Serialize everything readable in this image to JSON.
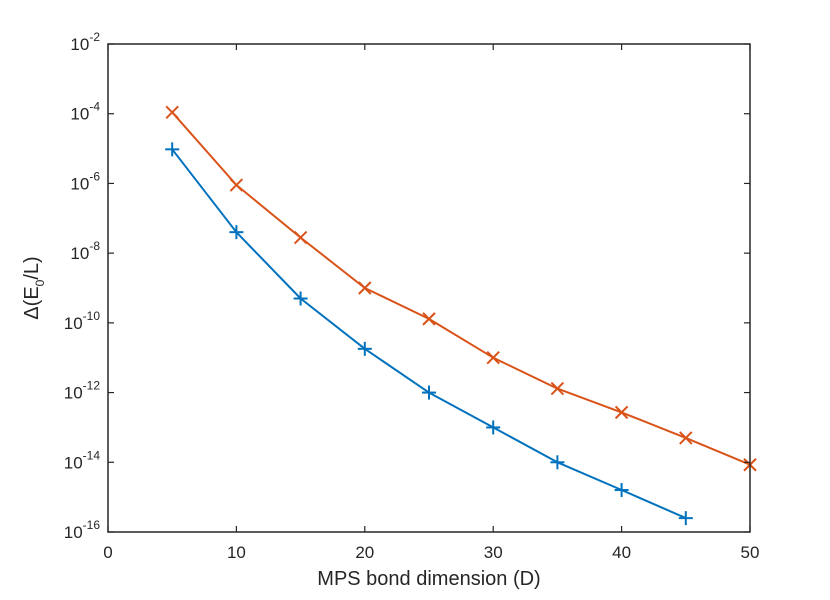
{
  "chart_data": {
    "type": "line",
    "title": "",
    "xlabel": "MPS bond dimension (D)",
    "ylabel": {
      "prefix": "Δ(E",
      "subscript": "0",
      "suffix": "/L)"
    },
    "xlim": [
      0,
      50
    ],
    "ylim": [
      1e-16,
      0.01
    ],
    "yscale": "log",
    "grid": false,
    "x_ticks": [
      0,
      10,
      20,
      30,
      40,
      50
    ],
    "x_tick_labels": [
      "0",
      "10",
      "20",
      "30",
      "40",
      "50"
    ],
    "y_ticks": [
      1e-16,
      1e-14,
      1e-12,
      1e-10,
      1e-08,
      1e-06,
      0.0001,
      0.01
    ],
    "y_tick_labels": [
      {
        "base": "10",
        "exp": "-16"
      },
      {
        "base": "10",
        "exp": "-14"
      },
      {
        "base": "10",
        "exp": "-12"
      },
      {
        "base": "10",
        "exp": "-10"
      },
      {
        "base": "10",
        "exp": "-8"
      },
      {
        "base": "10",
        "exp": "-6"
      },
      {
        "base": "10",
        "exp": "-4"
      },
      {
        "base": "10",
        "exp": "-2"
      }
    ],
    "series": [
      {
        "marker": "plus",
        "color": "#0072BD",
        "x": [
          5,
          10,
          15,
          20,
          25,
          30,
          35,
          40,
          45
        ],
        "y": [
          9.5e-06,
          4e-08,
          5e-10,
          1.8e-11,
          1e-12,
          1e-13,
          1e-14,
          1.6e-15,
          2.5e-16
        ]
      },
      {
        "marker": "x",
        "color": "#D95319",
        "x": [
          5,
          10,
          15,
          20,
          25,
          30,
          35,
          40,
          45,
          50
        ],
        "y": [
          0.00011,
          9e-07,
          2.8e-08,
          1e-09,
          1.3e-10,
          1e-11,
          1.3e-12,
          2.7e-13,
          5e-14,
          8.5e-15
        ]
      }
    ]
  }
}
